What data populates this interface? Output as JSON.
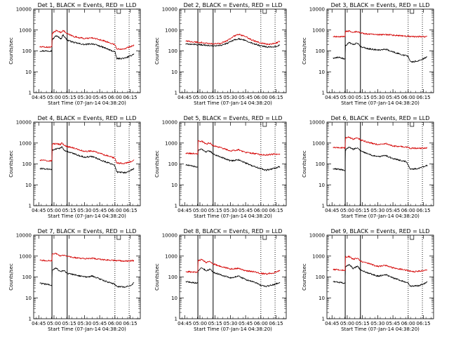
{
  "figure": {
    "background": "#ffffff",
    "foreground": "#000000"
  },
  "chart_data": [
    {
      "type": "line",
      "title": "Det 1, BLACK = Events, RED = LLD",
      "xlabel": "Start Time (07-Jan-14 04:38:20)",
      "ylabel": "Counts/sec",
      "x_ticks": [
        "04:45",
        "05:00",
        "05:15",
        "05:30",
        "05:45",
        "06:00",
        "06:15"
      ],
      "y_ticks": [
        "1",
        "10",
        "100",
        "1000",
        "10000"
      ],
      "y_scale": "log",
      "ylim": [
        1,
        10000
      ],
      "x_range_min": [
        6,
        99
      ],
      "solid_vlines_min": [
        18,
        33
      ],
      "dotted_vlines_min": [
        80,
        94
      ],
      "series": [
        {
          "color": "#000000",
          "x_min": [
            6,
            17.9,
            18,
            22,
            27,
            29,
            31,
            33,
            40,
            50,
            58,
            65,
            70,
            75,
            80,
            82,
            90,
            96,
            99
          ],
          "values": [
            100,
            100,
            330,
            540,
            380,
            600,
            430,
            330,
            250,
            200,
            220,
            170,
            140,
            110,
            90,
            42,
            45,
            60,
            75
          ]
        },
        {
          "color": "#d40000",
          "x_min": [
            6,
            17.9,
            18,
            22,
            27,
            29,
            31,
            33,
            40,
            50,
            58,
            65,
            70,
            75,
            80,
            82,
            90,
            96,
            99
          ],
          "values": [
            155,
            150,
            650,
            950,
            760,
            1000,
            780,
            660,
            480,
            390,
            420,
            340,
            300,
            240,
            200,
            120,
            130,
            165,
            190
          ]
        }
      ]
    },
    {
      "type": "line",
      "title": "Det 2, BLACK = Events, RED = LLD",
      "xlabel": "Start Time (07-Jan-14 04:38:20)",
      "ylabel": "Counts/sec",
      "x_ticks": [
        "04:45",
        "05:00",
        "05:15",
        "05:30",
        "05:45",
        "06:00",
        "06:15"
      ],
      "y_ticks": [
        "1",
        "10",
        "100",
        "1000",
        "10000"
      ],
      "y_scale": "log",
      "ylim": [
        1,
        10000
      ],
      "x_range_min": [
        6,
        99
      ],
      "solid_vlines_min": [
        18,
        33
      ],
      "dotted_vlines_min": [
        80,
        94
      ],
      "series": [
        {
          "color": "#000000",
          "x_min": [
            6,
            15,
            25,
            33,
            40,
            47,
            53,
            58,
            65,
            72,
            80,
            88,
            95,
            99
          ],
          "values": [
            210,
            205,
            190,
            170,
            180,
            230,
            330,
            380,
            320,
            230,
            175,
            150,
            165,
            190
          ]
        },
        {
          "color": "#d40000",
          "x_min": [
            6,
            15,
            25,
            33,
            40,
            47,
            53,
            58,
            65,
            72,
            80,
            88,
            95,
            99
          ],
          "values": [
            290,
            270,
            240,
            215,
            230,
            310,
            500,
            620,
            480,
            320,
            240,
            205,
            240,
            285
          ]
        }
      ]
    },
    {
      "type": "line",
      "title": "Det 3, BLACK = Events, RED = LLD",
      "xlabel": "Start Time (07-Jan-14 04:38:20)",
      "ylabel": "Counts/sec",
      "x_ticks": [
        "04:45",
        "05:00",
        "05:15",
        "05:30",
        "05:45",
        "06:00",
        "06:15"
      ],
      "y_ticks": [
        "1",
        "10",
        "100",
        "1000",
        "10000"
      ],
      "y_scale": "log",
      "ylim": [
        1,
        10000
      ],
      "x_range_min": [
        6,
        99
      ],
      "solid_vlines_min": [
        18,
        33
      ],
      "dotted_vlines_min": [
        80,
        94
      ],
      "series": [
        {
          "color": "#000000",
          "x_min": [
            6,
            12,
            17.9,
            18,
            22,
            26,
            30,
            33,
            40,
            50,
            58,
            65,
            72,
            80,
            82,
            88,
            95,
            99
          ],
          "values": [
            45,
            50,
            40,
            170,
            250,
            200,
            240,
            160,
            130,
            110,
            120,
            90,
            70,
            55,
            30,
            32,
            42,
            55
          ]
        },
        {
          "color": "#d40000",
          "x_min": [
            6,
            12,
            17.9,
            18,
            22,
            26,
            30,
            33,
            40,
            50,
            60,
            70,
            80,
            90,
            99
          ],
          "values": [
            480,
            490,
            470,
            850,
            900,
            800,
            850,
            720,
            640,
            590,
            600,
            540,
            500,
            480,
            470
          ]
        }
      ]
    },
    {
      "type": "line",
      "title": "Det 4, BLACK = Events, RED = LLD",
      "xlabel": "Start Time (07-Jan-14 04:38:20)",
      "ylabel": "Counts/sec",
      "x_ticks": [
        "04:45",
        "05:00",
        "05:15",
        "05:30",
        "05:45",
        "06:00",
        "06:15"
      ],
      "y_ticks": [
        "1",
        "10",
        "100",
        "1000",
        "10000"
      ],
      "y_scale": "log",
      "ylim": [
        1,
        10000
      ],
      "x_range_min": [
        6,
        99
      ],
      "solid_vlines_min": [
        18,
        33
      ],
      "dotted_vlines_min": [
        80,
        94
      ],
      "series": [
        {
          "color": "#000000",
          "x_min": [
            6,
            17.9,
            18,
            22,
            26,
            28,
            30,
            33,
            40,
            50,
            58,
            65,
            72,
            80,
            82,
            90,
            96,
            99
          ],
          "values": [
            60,
            55,
            450,
            520,
            560,
            650,
            450,
            400,
            300,
            210,
            230,
            160,
            120,
            85,
            40,
            38,
            50,
            60
          ]
        },
        {
          "color": "#d40000",
          "x_min": [
            6,
            17.9,
            18,
            22,
            26,
            28,
            30,
            33,
            40,
            50,
            58,
            65,
            72,
            80,
            82,
            90,
            96,
            99
          ],
          "values": [
            150,
            140,
            900,
            950,
            850,
            1000,
            780,
            680,
            560,
            400,
            420,
            320,
            250,
            190,
            110,
            105,
            130,
            155
          ]
        }
      ]
    },
    {
      "type": "line",
      "title": "Det 5, BLACK = Events, RED = LLD",
      "xlabel": "Start Time (07-Jan-14 04:38:20)",
      "ylabel": "Counts/sec",
      "x_ticks": [
        "04:45",
        "05:00",
        "05:15",
        "05:30",
        "05:45",
        "06:00",
        "06:15"
      ],
      "y_ticks": [
        "1",
        "10",
        "100",
        "1000",
        "10000"
      ],
      "y_scale": "log",
      "ylim": [
        1,
        10000
      ],
      "x_range_min": [
        6,
        99
      ],
      "solid_vlines_min": [
        18,
        33
      ],
      "dotted_vlines_min": [
        80,
        94
      ],
      "series": [
        {
          "color": "#000000",
          "x_min": [
            6,
            12,
            17.9,
            18,
            22,
            26,
            30,
            33,
            40,
            50,
            58,
            65,
            72,
            80,
            85,
            92,
            99
          ],
          "values": [
            90,
            80,
            70,
            450,
            500,
            380,
            420,
            300,
            220,
            140,
            160,
            110,
            80,
            60,
            50,
            60,
            75
          ]
        },
        {
          "color": "#d40000",
          "x_min": [
            6,
            12,
            17.9,
            18,
            22,
            26,
            30,
            33,
            40,
            50,
            58,
            65,
            72,
            80,
            85,
            92,
            99
          ],
          "values": [
            330,
            320,
            310,
            1300,
            1200,
            900,
            1000,
            760,
            620,
            420,
            480,
            360,
            320,
            280,
            270,
            290,
            300
          ]
        }
      ]
    },
    {
      "type": "line",
      "title": "Det 6, BLACK = Events, RED = LLD",
      "xlabel": "Start Time (07-Jan-14 04:38:20)",
      "ylabel": "Counts/sec",
      "x_ticks": [
        "04:45",
        "05:00",
        "05:15",
        "05:30",
        "05:45",
        "06:00",
        "06:15"
      ],
      "y_ticks": [
        "1",
        "10",
        "100",
        "1000",
        "10000"
      ],
      "y_scale": "log",
      "ylim": [
        1,
        10000
      ],
      "x_range_min": [
        6,
        99
      ],
      "solid_vlines_min": [
        18,
        33
      ],
      "dotted_vlines_min": [
        80,
        94
      ],
      "series": [
        {
          "color": "#000000",
          "x_min": [
            6,
            12,
            17.9,
            18,
            22,
            26,
            30,
            33,
            40,
            50,
            58,
            65,
            72,
            78,
            80,
            82,
            90,
            96,
            99
          ],
          "values": [
            60,
            55,
            50,
            450,
            650,
            500,
            600,
            430,
            300,
            220,
            250,
            180,
            150,
            130,
            90,
            55,
            60,
            75,
            85
          ]
        },
        {
          "color": "#d40000",
          "x_min": [
            6,
            12,
            17.9,
            18,
            22,
            26,
            30,
            33,
            40,
            50,
            58,
            65,
            72,
            78,
            80,
            82,
            90,
            96,
            99
          ],
          "values": [
            600,
            600,
            590,
            1800,
            1900,
            1500,
            1800,
            1400,
            1100,
            850,
            950,
            720,
            680,
            650,
            640,
            560,
            560,
            580,
            600
          ]
        }
      ]
    },
    {
      "type": "line",
      "title": "Det 7, BLACK = Events, RED = LLD",
      "xlabel": "Start Time (07-Jan-14 04:38:20)",
      "ylabel": "Counts/sec",
      "x_ticks": [
        "04:45",
        "05:00",
        "05:15",
        "05:30",
        "05:45",
        "06:00",
        "06:15"
      ],
      "y_ticks": [
        "1",
        "10",
        "100",
        "1000",
        "10000"
      ],
      "y_scale": "log",
      "ylim": [
        1,
        10000
      ],
      "x_range_min": [
        6,
        99
      ],
      "solid_vlines_min": [
        18,
        33
      ],
      "dotted_vlines_min": [
        80,
        94
      ],
      "series": [
        {
          "color": "#000000",
          "x_min": [
            6,
            12,
            17.9,
            18,
            22,
            26,
            30,
            33,
            40,
            50,
            58,
            65,
            72,
            80,
            82,
            90,
            96,
            99
          ],
          "values": [
            50,
            45,
            40,
            220,
            270,
            180,
            200,
            150,
            130,
            100,
            110,
            80,
            60,
            45,
            35,
            32,
            40,
            55
          ]
        },
        {
          "color": "#d40000",
          "x_min": [
            6,
            12,
            17.9,
            18,
            22,
            26,
            30,
            33,
            40,
            50,
            58,
            65,
            72,
            80,
            90,
            99
          ],
          "values": [
            620,
            610,
            600,
            1200,
            1300,
            1000,
            1100,
            950,
            850,
            750,
            780,
            700,
            650,
            620,
            580,
            600
          ]
        }
      ]
    },
    {
      "type": "line",
      "title": "Det 8, BLACK = Events, RED = LLD",
      "xlabel": "Start Time (07-Jan-14 04:38:20)",
      "ylabel": "Counts/sec",
      "x_ticks": [
        "04:45",
        "05:00",
        "05:15",
        "05:30",
        "05:45",
        "06:00",
        "06:15"
      ],
      "y_ticks": [
        "1",
        "10",
        "100",
        "1000",
        "10000"
      ],
      "y_scale": "log",
      "ylim": [
        1,
        10000
      ],
      "x_range_min": [
        6,
        99
      ],
      "solid_vlines_min": [
        18,
        33
      ],
      "dotted_vlines_min": [
        80,
        94
      ],
      "series": [
        {
          "color": "#000000",
          "x_min": [
            6,
            12,
            17.9,
            18,
            22,
            26,
            30,
            33,
            40,
            50,
            58,
            65,
            72,
            80,
            85,
            92,
            99
          ],
          "values": [
            60,
            55,
            50,
            200,
            280,
            200,
            240,
            170,
            130,
            90,
            110,
            75,
            60,
            40,
            35,
            42,
            55
          ]
        },
        {
          "color": "#d40000",
          "x_min": [
            6,
            12,
            17.9,
            18,
            22,
            26,
            30,
            33,
            40,
            50,
            58,
            65,
            72,
            80,
            85,
            92,
            99
          ],
          "values": [
            180,
            175,
            170,
            600,
            700,
            500,
            550,
            420,
            330,
            240,
            260,
            200,
            180,
            150,
            140,
            155,
            200
          ]
        }
      ]
    },
    {
      "type": "line",
      "title": "Det 9, BLACK = Events, RED = LLD",
      "xlabel": "Start Time (07-Jan-14 04:38:20)",
      "ylabel": "Counts/sec",
      "x_ticks": [
        "04:45",
        "05:00",
        "05:15",
        "05:30",
        "05:45",
        "06:00",
        "06:15"
      ],
      "y_ticks": [
        "1",
        "10",
        "100",
        "1000",
        "10000"
      ],
      "y_scale": "log",
      "ylim": [
        1,
        10000
      ],
      "x_range_min": [
        6,
        99
      ],
      "solid_vlines_min": [
        18,
        33
      ],
      "dotted_vlines_min": [
        80,
        94
      ],
      "series": [
        {
          "color": "#000000",
          "x_min": [
            6,
            12,
            17.9,
            18,
            22,
            26,
            30,
            33,
            40,
            50,
            58,
            65,
            72,
            80,
            82,
            90,
            96,
            99
          ],
          "values": [
            60,
            55,
            50,
            300,
            400,
            250,
            330,
            220,
            160,
            110,
            130,
            90,
            70,
            50,
            35,
            38,
            48,
            60
          ]
        },
        {
          "color": "#d40000",
          "x_min": [
            6,
            12,
            17.9,
            18,
            22,
            26,
            30,
            33,
            40,
            50,
            58,
            65,
            72,
            80,
            85,
            92,
            99
          ],
          "values": [
            230,
            220,
            210,
            900,
            950,
            700,
            800,
            580,
            450,
            320,
            360,
            270,
            240,
            200,
            180,
            190,
            220
          ]
        }
      ]
    }
  ]
}
